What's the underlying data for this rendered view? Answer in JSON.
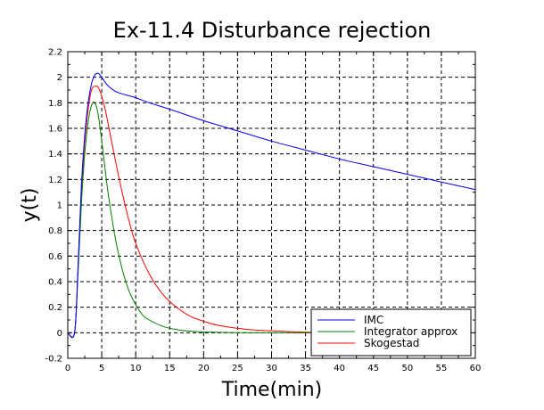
{
  "chart_data": {
    "type": "line",
    "title": "Ex-11.4 Disturbance rejection",
    "xlabel": "Time(min)",
    "ylabel": "y(t)",
    "xlim": [
      0,
      60
    ],
    "ylim": [
      -0.2,
      2.2
    ],
    "xticks": [
      0,
      5,
      10,
      15,
      20,
      25,
      30,
      35,
      40,
      45,
      50,
      55,
      60
    ],
    "xtick_labels": [
      "0",
      "5",
      "10",
      "15",
      "20",
      "25",
      "30",
      "35",
      "40",
      "45",
      "50",
      "55",
      "60"
    ],
    "yticks": [
      -0.2,
      0,
      0.2,
      0.4,
      0.6,
      0.8,
      1,
      1.2,
      1.4,
      1.6,
      1.8,
      2,
      2.2
    ],
    "ytick_labels": [
      "-0.2",
      "0",
      "0.2",
      "0.4",
      "0.6",
      "0.8",
      "1",
      "1.2",
      "1.4",
      "1.6",
      "1.8",
      "2",
      "2.2"
    ],
    "grid": true,
    "legend_position": "bottom-right",
    "series": [
      {
        "name": "IMC",
        "color": "#0000ff",
        "x": [
          0,
          1,
          1.5,
          2,
          2.5,
          3,
          3.5,
          4,
          4.5,
          5,
          5.5,
          6,
          7,
          8,
          9,
          10,
          12,
          15,
          20,
          25,
          30,
          35,
          40,
          45,
          50,
          55,
          60
        ],
        "y": [
          0,
          0,
          0.5,
          1.15,
          1.55,
          1.8,
          1.95,
          2.02,
          2.03,
          2.0,
          1.96,
          1.93,
          1.89,
          1.87,
          1.855,
          1.84,
          1.8,
          1.75,
          1.66,
          1.58,
          1.5,
          1.43,
          1.36,
          1.3,
          1.24,
          1.18,
          1.12
        ]
      },
      {
        "name": "Integrator approx",
        "color": "#008000",
        "x": [
          0,
          1,
          1.5,
          2,
          2.5,
          3,
          3.5,
          4,
          4.5,
          5,
          5.5,
          6,
          7,
          8,
          9,
          10,
          11,
          12,
          14,
          16,
          18,
          20,
          25,
          30,
          36
        ],
        "y": [
          0,
          0,
          0.45,
          1.0,
          1.4,
          1.65,
          1.78,
          1.8,
          1.7,
          1.5,
          1.28,
          1.07,
          0.74,
          0.5,
          0.33,
          0.22,
          0.14,
          0.1,
          0.05,
          0.025,
          0.012,
          0.006,
          0.001,
          0.0,
          0.0
        ]
      },
      {
        "name": "Skogestad",
        "color": "#ff0000",
        "x": [
          0,
          1,
          1.5,
          2,
          2.5,
          3,
          3.5,
          4,
          4.5,
          5,
          5.5,
          6,
          7,
          8,
          9,
          10,
          12,
          14,
          16,
          18,
          20,
          22,
          25,
          28,
          30,
          32,
          35,
          36
        ],
        "y": [
          0,
          0,
          0.5,
          1.1,
          1.5,
          1.75,
          1.9,
          1.93,
          1.92,
          1.85,
          1.75,
          1.62,
          1.35,
          1.1,
          0.88,
          0.7,
          0.46,
          0.3,
          0.2,
          0.13,
          0.09,
          0.06,
          0.035,
          0.02,
          0.015,
          0.01,
          0.005,
          0.004
        ]
      }
    ]
  }
}
